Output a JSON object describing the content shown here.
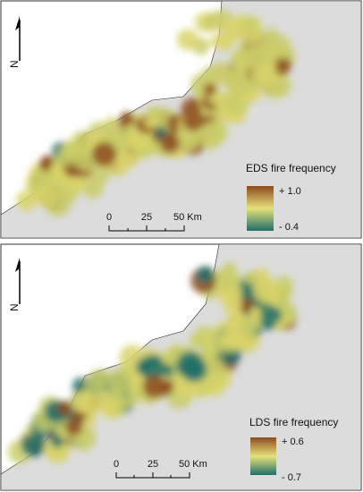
{
  "panels": [
    {
      "north": "N",
      "scale": {
        "labels": [
          "0",
          "25",
          "50 Km"
        ]
      },
      "legend": {
        "title": "EDS fire frequency",
        "max": "+ 1.0",
        "min": "- 0.4"
      }
    },
    {
      "north": "N",
      "scale": {
        "labels": [
          "0",
          "25",
          "50 Km"
        ]
      },
      "legend": {
        "title": "LDS fire frequency",
        "max": "+ 0.6",
        "min": "- 0.7"
      }
    }
  ]
}
